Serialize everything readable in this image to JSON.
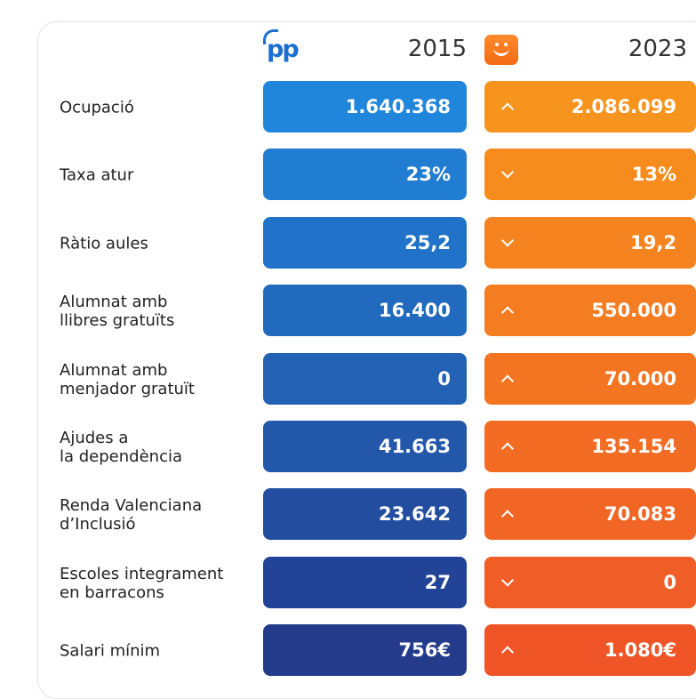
{
  "header": {
    "pp_logo_text": "pp",
    "year_left": "2015",
    "year_right": "2023"
  },
  "colors": {
    "pp_top": "#1f86dc",
    "pp_bottom": "#243b8c",
    "orange_top": "#f7941d",
    "orange_bottom": "#ef5527"
  },
  "chart_data": {
    "type": "table",
    "columns": [
      "",
      "2015",
      "2023"
    ],
    "rows": [
      {
        "label": "Ocupació",
        "v2015": "1.640.368",
        "v2023": "2.086.099",
        "trend": "up"
      },
      {
        "label": "Taxa atur",
        "v2015": "23%",
        "v2023": "13%",
        "trend": "down"
      },
      {
        "label": "Ràtio aules",
        "v2015": "25,2",
        "v2023": "19,2",
        "trend": "down"
      },
      {
        "label": "Alumnat amb\nllibres gratuïts",
        "v2015": "16.400",
        "v2023": "550.000",
        "trend": "up"
      },
      {
        "label": "Alumnat amb\nmenjador gratuït",
        "v2015": "0",
        "v2023": "70.000",
        "trend": "up"
      },
      {
        "label": "Ajudes a\nla dependència",
        "v2015": "41.663",
        "v2023": "135.154",
        "trend": "up"
      },
      {
        "label": "Renda Valenciana\nd’Inclusió",
        "v2015": "23.642",
        "v2023": "70.083",
        "trend": "up"
      },
      {
        "label": "Escoles integrament\nen barracons",
        "v2015": "27",
        "v2023": "0",
        "trend": "down"
      },
      {
        "label": "Salari mínim",
        "v2015": "756€",
        "v2023": "1.080€",
        "trend": "up"
      }
    ]
  }
}
